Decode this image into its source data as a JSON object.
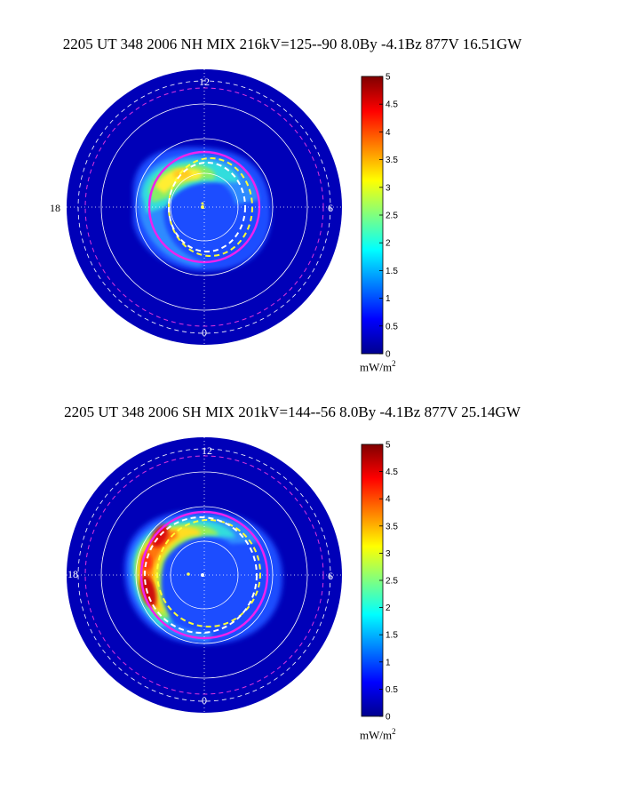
{
  "panels": [
    {
      "id": "nh",
      "title": "2205 UT 348 2006 NH MIX 216kV=125--90  8.0By -4.1Bz 877V 16.51GW",
      "hemisphere": "NH",
      "mlt_labels": {
        "top": "12",
        "bottom": "0",
        "left": "18",
        "right": "6"
      },
      "colorbar": {
        "min": 0,
        "max": 5,
        "ticks": [
          "0",
          "0.5",
          "1",
          "1.5",
          "2",
          "2.5",
          "3",
          "3.5",
          "4",
          "4.5",
          "5"
        ],
        "units": "mW/m",
        "units_exp": "2"
      }
    },
    {
      "id": "sh",
      "title": "2205 UT 348 2006 SH MIX 201kV=144--56  8.0By -4.1Bz 877V 25.14GW",
      "hemisphere": "SH",
      "mlt_labels": {
        "top": "12",
        "bottom": "0",
        "left": "18",
        "right": "6"
      },
      "colorbar": {
        "min": 0,
        "max": 5,
        "ticks": [
          "0",
          "0.5",
          "1",
          "1.5",
          "2",
          "2.5",
          "3",
          "3.5",
          "4",
          "4.5",
          "5"
        ],
        "units": "mW/m",
        "units_exp": "2"
      }
    }
  ],
  "chart_data": [
    {
      "type": "heatmap",
      "projection": "polar (magnetic local time)",
      "title": "2205 UT 348 2006 NH MIX 216kV=125--90  8.0By -4.1Bz 877V 16.51GW",
      "quantity": "auroral energy flux",
      "units": "mW/m^2",
      "color_range": [
        0,
        5
      ],
      "peak_value": 3.4,
      "peak_location_mlt": "~14-15 MLT (upper left of oval)",
      "colormap": "jet"
    },
    {
      "type": "heatmap",
      "projection": "polar (magnetic local time)",
      "title": "2205 UT 348 2006 SH MIX 201kV=144--56  8.0By -4.1Bz 877V 25.14GW",
      "quantity": "auroral energy flux",
      "units": "mW/m^2",
      "color_range": [
        0,
        5
      ],
      "peak_value": 5.0,
      "peak_location_mlt": "~16-19 MLT (left side of oval)",
      "colormap": "jet"
    }
  ]
}
